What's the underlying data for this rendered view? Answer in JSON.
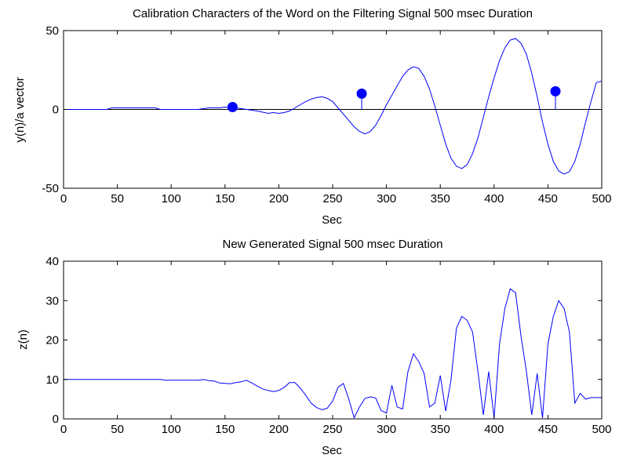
{
  "chart_data": [
    {
      "type": "line",
      "title": "Calibration Characters of the Word on the Filtering Signal  500 msec Duration",
      "xlabel": "Sec",
      "ylabel": "y(n)/a vector",
      "xlim": [
        0,
        500
      ],
      "ylim": [
        -50,
        50
      ],
      "xticks": [
        "0",
        "50",
        "100",
        "150",
        "200",
        "250",
        "300",
        "350",
        "400",
        "450",
        "500"
      ],
      "yticks": [
        "-50",
        "0",
        "50"
      ],
      "grid": false,
      "series": [
        {
          "color": "#0000ff",
          "x": [
            0,
            40,
            45,
            85,
            90,
            125,
            135,
            145,
            150,
            160,
            170,
            180,
            190,
            195,
            200,
            205,
            210,
            215,
            220,
            225,
            230,
            235,
            240,
            245,
            250,
            255,
            260,
            265,
            270,
            275,
            280,
            285,
            290,
            295,
            300,
            305,
            310,
            315,
            320,
            325,
            330,
            335,
            340,
            345,
            350,
            355,
            360,
            365,
            370,
            375,
            380,
            385,
            390,
            395,
            400,
            405,
            410,
            415,
            420,
            425,
            430,
            435,
            440,
            445,
            450,
            455,
            460,
            465,
            470,
            475,
            480,
            485,
            490,
            495,
            500
          ],
          "y": [
            0,
            0,
            1,
            1,
            0,
            0,
            1,
            1,
            1.5,
            1,
            0,
            -1,
            -2.5,
            -2,
            -2.5,
            -2,
            -1,
            1,
            3,
            5,
            6.5,
            7.5,
            8,
            7,
            5,
            1,
            -3,
            -7,
            -11,
            -14,
            -15.5,
            -14,
            -10,
            -4,
            3,
            9,
            15,
            21,
            25,
            27,
            26,
            21,
            13,
            2,
            -10,
            -22,
            -31,
            -36,
            -37.5,
            -35,
            -28,
            -18,
            -5,
            8,
            20,
            31,
            39,
            44,
            45,
            42,
            35,
            23,
            8,
            -8,
            -22,
            -33,
            -39,
            -41,
            -39.5,
            -33,
            -22,
            -8,
            5,
            17,
            18
          ]
        }
      ],
      "stems": [
        {
          "x": 157,
          "y": 1.5
        },
        {
          "x": 277,
          "y": 10
        },
        {
          "x": 457,
          "y": 11.5
        }
      ],
      "reference_line": {
        "y": 0,
        "color": "#000000"
      }
    },
    {
      "type": "line",
      "title": "New Generated Signal  500 msec Duration",
      "xlabel": "Sec",
      "ylabel": "z(n)",
      "xlim": [
        0,
        500
      ],
      "ylim": [
        0,
        40
      ],
      "xticks": [
        "0",
        "50",
        "100",
        "150",
        "200",
        "250",
        "300",
        "350",
        "400",
        "450",
        "500"
      ],
      "yticks": [
        "0",
        "10",
        "20",
        "30",
        "40"
      ],
      "grid": false,
      "series": [
        {
          "color": "#0000ff",
          "x": [
            0,
            90,
            95,
            125,
            130,
            135,
            140,
            145,
            150,
            155,
            160,
            165,
            170,
            175,
            180,
            185,
            190,
            195,
            200,
            205,
            210,
            215,
            220,
            225,
            230,
            235,
            240,
            245,
            250,
            255,
            260,
            265,
            270,
            275,
            280,
            285,
            290,
            295,
            300,
            305,
            310,
            315,
            320,
            325,
            330,
            335,
            340,
            345,
            350,
            355,
            360,
            365,
            370,
            375,
            380,
            385,
            390,
            395,
            400,
            405,
            410,
            415,
            420,
            425,
            430,
            435,
            440,
            445,
            450,
            455,
            460,
            465,
            470,
            475,
            480,
            485,
            490,
            495,
            500
          ],
          "y": [
            10,
            10,
            9.8,
            9.8,
            10,
            9.7,
            9.6,
            9.1,
            9,
            8.9,
            9.2,
            9.4,
            9.8,
            9.1,
            8.3,
            7.6,
            7.2,
            6.9,
            7.2,
            8,
            9.2,
            9.2,
            7.8,
            6,
            4,
            2.9,
            2.3,
            2.7,
            4.5,
            8,
            9,
            5,
            0.3,
            3,
            5.2,
            5.6,
            5.3,
            2.1,
            1.5,
            8.5,
            3,
            2.5,
            12,
            16.5,
            14.5,
            11.5,
            3,
            4,
            11,
            2,
            10,
            23,
            26,
            25,
            22,
            12,
            1,
            12,
            0.2,
            19,
            28,
            33,
            32,
            21,
            12,
            1,
            11.5,
            0.2,
            19,
            26,
            30,
            28,
            22,
            4,
            6.5,
            5,
            5.4,
            5.4,
            5.4
          ]
        }
      ]
    }
  ]
}
